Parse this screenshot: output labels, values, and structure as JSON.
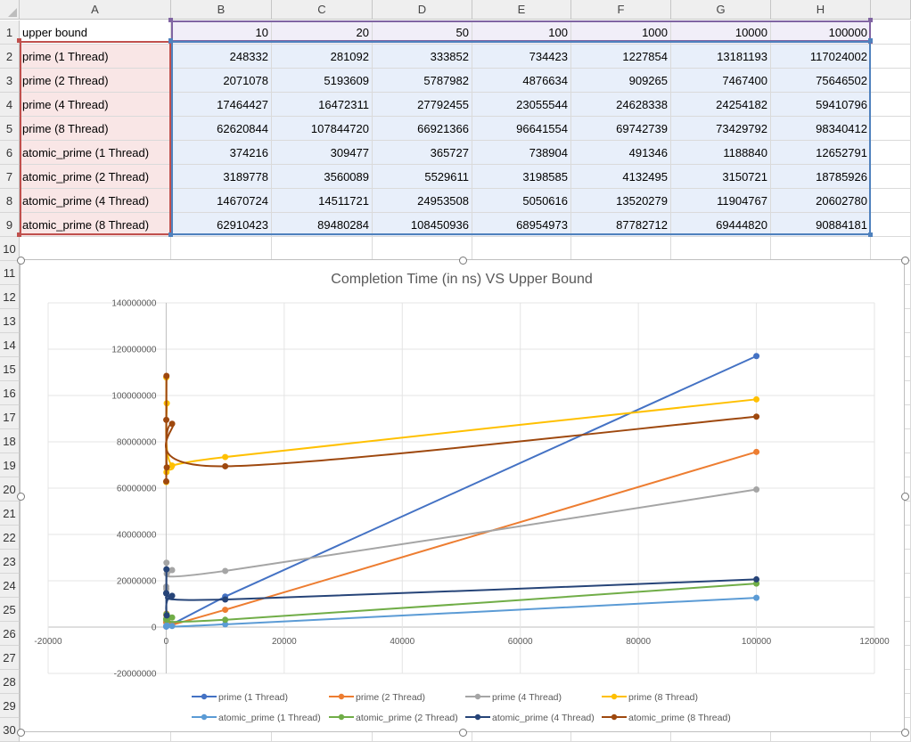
{
  "sheet": {
    "columns": [
      "A",
      "B",
      "C",
      "D",
      "E",
      "F",
      "G",
      "H"
    ],
    "row_numbers": [
      "1",
      "2",
      "3",
      "4",
      "5",
      "6",
      "7",
      "8",
      "9",
      "10",
      "11",
      "12",
      "13",
      "14",
      "15",
      "16",
      "17",
      "18",
      "19",
      "20",
      "21",
      "22",
      "23",
      "24",
      "25",
      "26",
      "27",
      "28",
      "29",
      "30"
    ],
    "header_row": {
      "label": "upper bound",
      "values": [
        "10",
        "20",
        "50",
        "100",
        "1000",
        "10000",
        "100000"
      ]
    },
    "rows": [
      {
        "label": "prime (1 Thread)",
        "values": [
          "248332",
          "281092",
          "333852",
          "734423",
          "1227854",
          "13181193",
          "117024002"
        ]
      },
      {
        "label": "prime (2 Thread)",
        "values": [
          "2071078",
          "5193609",
          "5787982",
          "4876634",
          "909265",
          "7467400",
          "75646502"
        ]
      },
      {
        "label": "prime (4 Thread)",
        "values": [
          "17464427",
          "16472311",
          "27792455",
          "23055544",
          "24628338",
          "24254182",
          "59410796"
        ]
      },
      {
        "label": "prime (8 Thread)",
        "values": [
          "62620844",
          "107844720",
          "66921366",
          "96641554",
          "69742739",
          "73429792",
          "98340412"
        ]
      },
      {
        "label": "atomic_prime (1 Thread)",
        "values": [
          "374216",
          "309477",
          "365727",
          "738904",
          "491346",
          "1188840",
          "12652791"
        ]
      },
      {
        "label": "atomic_prime (2 Thread)",
        "values": [
          "3189778",
          "3560089",
          "5529611",
          "3198585",
          "4132495",
          "3150721",
          "18785926"
        ]
      },
      {
        "label": "atomic_prime (4 Thread)",
        "values": [
          "14670724",
          "14511721",
          "24953508",
          "5050616",
          "13520279",
          "11904767",
          "20602780"
        ]
      },
      {
        "label": "atomic_prime (8 Thread)",
        "values": [
          "62910423",
          "89480284",
          "108450936",
          "68954973",
          "87782712",
          "69444820",
          "90884181"
        ]
      }
    ]
  },
  "chart_data": {
    "type": "scatter",
    "title": "Completion Time (in ns) VS Upper Bound",
    "xlabel": "",
    "ylabel": "",
    "x": [
      10,
      20,
      50,
      100,
      1000,
      10000,
      100000
    ],
    "xlim": [
      -20000,
      120000
    ],
    "ylim": [
      -20000000,
      140000000
    ],
    "x_ticks": [
      "-20000",
      "0",
      "20000",
      "40000",
      "60000",
      "80000",
      "100000",
      "120000"
    ],
    "y_ticks": [
      "140000000",
      "120000000",
      "100000000",
      "80000000",
      "60000000",
      "40000000",
      "20000000",
      "0",
      "-20000000"
    ],
    "grid": true,
    "legend": "bottom",
    "series": [
      {
        "name": "prime (1 Thread)",
        "color": "#4472c4",
        "smooth": false,
        "values": [
          248332,
          281092,
          333852,
          734423,
          1227854,
          13181193,
          117024002
        ]
      },
      {
        "name": "prime (2 Thread)",
        "color": "#ed7d31",
        "smooth": false,
        "values": [
          2071078,
          5193609,
          5787982,
          4876634,
          909265,
          7467400,
          75646502
        ]
      },
      {
        "name": "prime (4 Thread)",
        "color": "#a5a5a5",
        "smooth": true,
        "values": [
          17464427,
          16472311,
          27792455,
          23055544,
          24628338,
          24254182,
          59410796
        ]
      },
      {
        "name": "prime (8 Thread)",
        "color": "#ffc000",
        "smooth": true,
        "values": [
          62620844,
          107844720,
          66921366,
          96641554,
          69742739,
          73429792,
          98340412
        ]
      },
      {
        "name": "atomic_prime (1 Thread)",
        "color": "#5b9bd5",
        "smooth": true,
        "values": [
          374216,
          309477,
          365727,
          738904,
          491346,
          1188840,
          12652791
        ]
      },
      {
        "name": "atomic_prime (2 Thread)",
        "color": "#70ad47",
        "smooth": true,
        "values": [
          3189778,
          3560089,
          5529611,
          3198585,
          4132495,
          3150721,
          18785926
        ]
      },
      {
        "name": "atomic_prime (4 Thread)",
        "color": "#264478",
        "smooth": true,
        "values": [
          14670724,
          14511721,
          24953508,
          5050616,
          13520279,
          11904767,
          20602780
        ]
      },
      {
        "name": "atomic_prime (8 Thread)",
        "color": "#9e480e",
        "smooth": true,
        "values": [
          62910423,
          89480284,
          108450936,
          68954973,
          87782712,
          69444820,
          90884181
        ]
      }
    ]
  }
}
